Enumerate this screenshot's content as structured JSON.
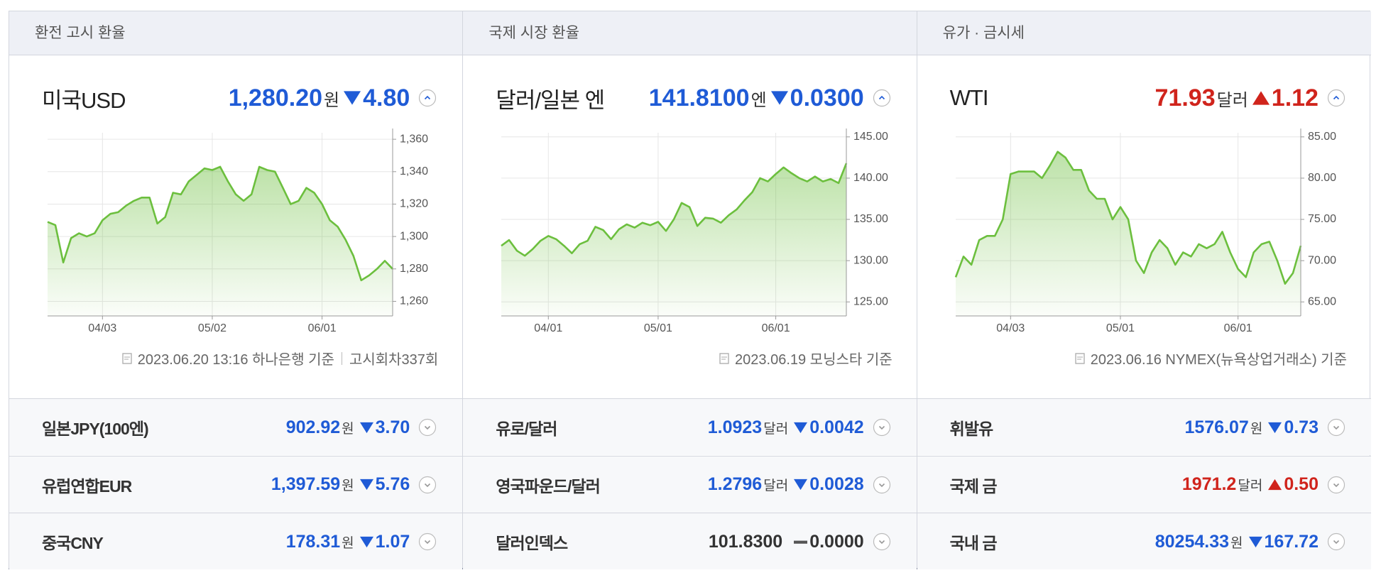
{
  "panels": [
    {
      "header": "환전 고시 환율",
      "main": {
        "name": "미국USD",
        "price": "1,280.20",
        "unit": "원",
        "change": "4.80",
        "direction": "down"
      },
      "footnote": {
        "text": "2023.06.20 13:16 하나은행 기준",
        "extra": "고시회차337회"
      },
      "rows": [
        {
          "name": "일본JPY(100엔)",
          "price": "902.92",
          "unit": "원",
          "change": "3.70",
          "direction": "down"
        },
        {
          "name": "유럽연합EUR",
          "price": "1,397.59",
          "unit": "원",
          "change": "5.76",
          "direction": "down"
        },
        {
          "name": "중국CNY",
          "price": "178.31",
          "unit": "원",
          "change": "1.07",
          "direction": "down"
        }
      ]
    },
    {
      "header": "국제 시장 환율",
      "main": {
        "name": "달러/일본 엔",
        "price": "141.8100",
        "unit": "엔",
        "change": "0.0300",
        "direction": "down"
      },
      "footnote": {
        "text": "2023.06.19 모닝스타 기준"
      },
      "rows": [
        {
          "name": "유로/달러",
          "price": "1.0923",
          "unit": "달러",
          "change": "0.0042",
          "direction": "down"
        },
        {
          "name": "영국파운드/달러",
          "price": "1.2796",
          "unit": "달러",
          "change": "0.0028",
          "direction": "down"
        },
        {
          "name": "달러인덱스",
          "price": "101.8300",
          "unit": "",
          "change": "0.0000",
          "direction": "flat"
        }
      ]
    },
    {
      "header": "유가 · 금시세",
      "main": {
        "name": "WTI",
        "price": "71.93",
        "unit": "달러",
        "change": "1.12",
        "direction": "up"
      },
      "footnote": {
        "text": "2023.06.16 NYMEX(뉴욕상업거래소) 기준"
      },
      "rows": [
        {
          "name": "휘발유",
          "price": "1576.07",
          "unit": "원",
          "change": "0.73",
          "direction": "down"
        },
        {
          "name": "국제 금",
          "price": "1971.2",
          "unit": "달러",
          "change": "0.50",
          "direction": "up"
        },
        {
          "name": "국내 금",
          "price": "80254.33",
          "unit": "원",
          "change": "167.72",
          "direction": "down"
        }
      ]
    }
  ],
  "chart_data": [
    {
      "type": "line",
      "color": "#6cbf3e",
      "categories": [
        null,
        null,
        null,
        null,
        null,
        null,
        null,
        "04/03",
        null,
        null,
        null,
        null,
        null,
        null,
        null,
        null,
        null,
        null,
        null,
        null,
        null,
        "05/02",
        null,
        null,
        null,
        null,
        null,
        null,
        null,
        null,
        null,
        null,
        null,
        null,
        null,
        "06/01",
        null,
        null,
        null,
        null,
        null,
        null,
        null,
        null,
        null
      ],
      "values": [
        1309,
        1307,
        1284,
        1299,
        1302,
        1300,
        1302,
        1310,
        1314,
        1315,
        1319,
        1322,
        1324,
        1324,
        1308,
        1312,
        1327,
        1326,
        1334,
        1338,
        1342,
        1341,
        1343,
        1334,
        1326,
        1322,
        1326,
        1343,
        1341,
        1340,
        1330,
        1320,
        1322,
        1330,
        1327,
        1320,
        1310,
        1306,
        1298,
        1288,
        1273,
        1276,
        1280,
        1285,
        1280
      ],
      "ylim": [
        1251,
        1364
      ],
      "yticks": [
        {
          "value": 1260,
          "label": "1,260"
        },
        {
          "value": 1280,
          "label": "1,280"
        },
        {
          "value": 1300,
          "label": "1,300"
        },
        {
          "value": 1320,
          "label": "1,320"
        },
        {
          "value": 1340,
          "label": "1,340"
        },
        {
          "value": 1360,
          "label": "1,360"
        }
      ],
      "grid": true
    },
    {
      "type": "line",
      "color": "#6cbf3e",
      "categories": [
        null,
        null,
        null,
        null,
        null,
        null,
        "04/01",
        null,
        null,
        null,
        null,
        null,
        null,
        null,
        null,
        null,
        null,
        null,
        null,
        null,
        "05/01",
        null,
        null,
        null,
        null,
        null,
        null,
        null,
        null,
        null,
        null,
        null,
        null,
        null,
        null,
        "06/01",
        null,
        null,
        null,
        null,
        null,
        null,
        null,
        null,
        null
      ],
      "values": [
        131.8,
        132.5,
        131.2,
        130.6,
        131.4,
        132.4,
        133.0,
        132.6,
        131.8,
        130.9,
        132.0,
        132.4,
        134.1,
        133.7,
        132.6,
        133.8,
        134.4,
        134.0,
        134.6,
        134.3,
        134.7,
        133.6,
        135.0,
        137.0,
        136.5,
        134.2,
        135.2,
        135.1,
        134.6,
        135.5,
        136.2,
        137.3,
        138.3,
        140.0,
        139.6,
        140.5,
        141.3,
        140.6,
        140.0,
        139.6,
        140.2,
        139.6,
        139.9,
        139.4,
        141.8
      ],
      "ylim": [
        123.3,
        145.5
      ],
      "yticks": [
        {
          "value": 125,
          "label": "125.00"
        },
        {
          "value": 130,
          "label": "130.00"
        },
        {
          "value": 135,
          "label": "135.00"
        },
        {
          "value": 140,
          "label": "140.00"
        },
        {
          "value": 145,
          "label": "145.00"
        }
      ],
      "grid": true
    },
    {
      "type": "line",
      "color": "#6cbf3e",
      "categories": [
        null,
        null,
        null,
        null,
        null,
        null,
        null,
        "04/03",
        null,
        null,
        null,
        null,
        null,
        null,
        null,
        null,
        null,
        null,
        null,
        null,
        null,
        "05/01",
        null,
        null,
        null,
        null,
        null,
        null,
        null,
        null,
        null,
        null,
        null,
        null,
        null,
        null,
        "06/01",
        null,
        null,
        null,
        null,
        null,
        null,
        null,
        null
      ],
      "values": [
        68,
        70.5,
        69.5,
        72.5,
        73,
        73,
        75,
        80.5,
        80.8,
        80.8,
        80.8,
        80,
        81.5,
        83.2,
        82.5,
        81,
        81,
        78.5,
        77.5,
        77.5,
        75,
        76.5,
        75,
        70,
        68.5,
        71,
        72.5,
        71.5,
        69.5,
        71,
        70.5,
        72,
        71.5,
        72,
        73.5,
        71,
        69,
        68,
        71,
        72,
        72.3,
        70,
        67.2,
        68.5,
        71.8
      ],
      "ylim": [
        63.3,
        85.5
      ],
      "yticks": [
        {
          "value": 65,
          "label": "65.00"
        },
        {
          "value": 70,
          "label": "70.00"
        },
        {
          "value": 75,
          "label": "75.00"
        },
        {
          "value": 80,
          "label": "80.00"
        },
        {
          "value": 85,
          "label": "85.00"
        }
      ],
      "grid": true
    }
  ]
}
